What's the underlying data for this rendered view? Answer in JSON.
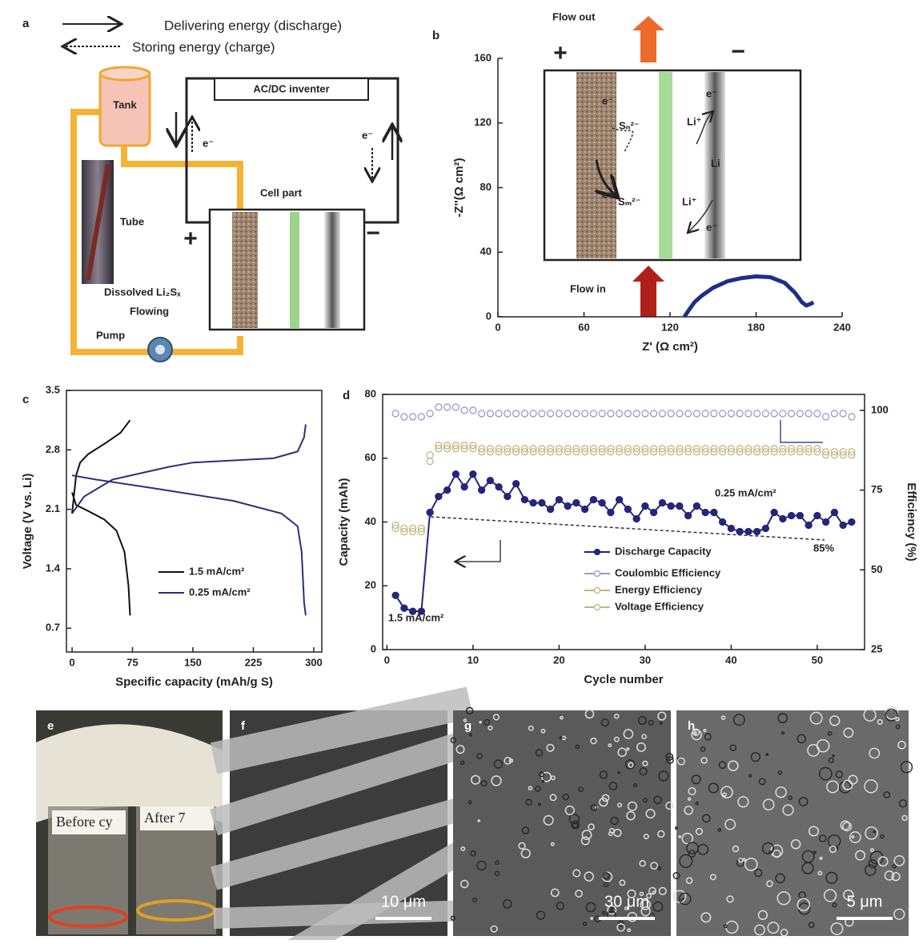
{
  "panel_a": {
    "label": "a",
    "legend": [
      "Delivering energy (discharge)",
      "Storing energy (charge)"
    ],
    "inverter": "AC/DC inventer",
    "tank": "Tank",
    "tube": "Tube",
    "cell": "Cell part",
    "plus": "+",
    "minus": "−",
    "electrons": [
      "e⁻",
      "e⁻"
    ],
    "dissolved": "Dissolved Li₂Sₓ",
    "flowing": "Flowing",
    "pump": "Pump"
  },
  "chart_data": [
    {
      "label": "b",
      "type": "line",
      "xlabel": "Z' (Ω cm²)",
      "ylabel": "-Z''(Ω cm²)",
      "xlim": [
        0,
        240
      ],
      "ylim": [
        0,
        160
      ],
      "xticks": [
        0,
        60,
        120,
        180,
        240
      ],
      "yticks": [
        0,
        40,
        80,
        120,
        160
      ],
      "x": [
        130,
        133,
        137,
        142,
        150,
        160,
        170,
        180,
        190,
        200,
        207,
        212,
        215,
        218,
        220
      ],
      "series": [
        {
          "color": "#1f2d8a",
          "values": [
            0,
            4,
            9,
            13,
            18,
            22,
            24,
            25,
            24.5,
            21,
            15,
            9,
            7,
            8,
            9
          ]
        }
      ],
      "inset": {
        "flow_out": "Flow out",
        "flow_in": "Flow in",
        "plus": "+",
        "minus": "−",
        "species": [
          "e⁻",
          "Sₙ²⁻",
          "e⁻",
          "Sₘ²⁻",
          "Li⁺",
          "e⁻",
          "Li",
          "Li⁺",
          "e⁻"
        ]
      }
    },
    {
      "label": "c",
      "type": "line",
      "xlabel": "Specific capacity (mAh/g S)",
      "ylabel": "Voltage (V vs. Li)",
      "xlim": [
        -7,
        310
      ],
      "ylim": [
        0.42,
        3.5
      ],
      "xticks": [
        0,
        75,
        150,
        225,
        300
      ],
      "yticks": [
        0.7,
        1.4,
        2.1,
        2.8,
        3.5
      ],
      "legend": "lower-right",
      "series": [
        {
          "name": "1.5 mA/cm²",
          "color": "#111111",
          "x": [
            0,
            5,
            20,
            40,
            55,
            65,
            70,
            72,
            null,
            0,
            5,
            10,
            20,
            40,
            60,
            72
          ],
          "values": [
            2.3,
            2.15,
            2.08,
            1.98,
            1.85,
            1.6,
            1.2,
            0.85,
            null,
            2.05,
            2.5,
            2.65,
            2.75,
            2.87,
            3.0,
            3.15
          ]
        },
        {
          "name": "0.25 mA/cm²",
          "color": "#2b2f7a",
          "x": [
            0,
            30,
            100,
            200,
            260,
            280,
            285,
            288,
            290,
            null,
            0,
            15,
            50,
            120,
            150,
            250,
            280,
            288,
            290
          ],
          "values": [
            2.5,
            2.45,
            2.35,
            2.2,
            2.05,
            1.9,
            1.6,
            1.0,
            0.85,
            null,
            2.05,
            2.25,
            2.45,
            2.6,
            2.65,
            2.7,
            2.78,
            2.95,
            3.1
          ]
        }
      ]
    },
    {
      "label": "d",
      "type": "line",
      "xlabel": "Cycle number",
      "ylabel": "Capacity (mAh)",
      "y2label": "Efficiency (%)",
      "xlim": [
        -0.5,
        55.5
      ],
      "ylim": [
        0,
        80
      ],
      "y2lim": [
        25,
        105
      ],
      "xticks": [
        0,
        10,
        20,
        30,
        40,
        50
      ],
      "yticks": [
        0,
        20,
        40,
        60,
        80
      ],
      "y2ticks": [
        25,
        50,
        75,
        100
      ],
      "legend": "center-right",
      "annotations": [
        "1.5 mA/cm²",
        "0.25 mA/cm²",
        "85%"
      ],
      "x": [
        1,
        2,
        3,
        4,
        5,
        6,
        7,
        8,
        9,
        10,
        11,
        12,
        13,
        14,
        15,
        16,
        17,
        18,
        19,
        20,
        21,
        22,
        23,
        24,
        25,
        26,
        27,
        28,
        29,
        30,
        31,
        32,
        33,
        34,
        35,
        36,
        37,
        38,
        39,
        40,
        41,
        42,
        43,
        44,
        45,
        46,
        47,
        48,
        49,
        50,
        51,
        52,
        53,
        54
      ],
      "series": [
        {
          "name": "Discharge Capacity",
          "color": "#23267a",
          "marker": "filled",
          "values": [
            17,
            13,
            12,
            12,
            43,
            48,
            50,
            55,
            51,
            55,
            50,
            53,
            51,
            48,
            52,
            47,
            46,
            46,
            44,
            47,
            45,
            46,
            44,
            47,
            46,
            43,
            47,
            44,
            41,
            45,
            43,
            46,
            45,
            45,
            42,
            45,
            43,
            43,
            40,
            38,
            37,
            37,
            37,
            38,
            43,
            41,
            42,
            42,
            39,
            42,
            40,
            43,
            39,
            40
          ]
        },
        {
          "name": "Coulombic Efficiency",
          "color": "#9a9ad0",
          "marker": "open",
          "axis": "y2",
          "values": [
            99,
            98,
            98,
            98,
            99,
            101,
            101,
            101,
            100,
            100,
            99,
            99,
            99,
            99,
            99,
            99,
            99,
            99,
            99,
            99,
            99,
            99,
            99,
            99,
            99,
            99,
            99,
            99,
            99,
            99,
            99,
            99,
            99,
            99,
            99,
            99,
            99,
            99,
            99,
            99,
            99,
            99,
            99,
            99,
            99,
            99,
            99,
            99,
            99,
            99,
            98,
            99,
            99,
            98
          ]
        },
        {
          "name": "Energy Efficiency",
          "color": "#c8b47a",
          "marker": "open",
          "axis": "y2",
          "values": [
            64,
            63,
            63,
            63,
            86,
            89,
            89,
            89,
            89,
            89,
            88,
            88,
            88,
            88,
            88,
            88,
            88,
            88,
            88,
            88,
            88,
            88,
            88,
            88,
            88,
            88,
            88,
            88,
            88,
            88,
            88,
            88,
            88,
            88,
            88,
            88,
            88,
            88,
            88,
            88,
            88,
            88,
            88,
            88,
            88,
            88,
            88,
            88,
            88,
            88,
            87,
            87,
            87,
            87
          ]
        },
        {
          "name": "Voltage Efficiency",
          "color": "#b9b98a",
          "marker": "open",
          "axis": "y2",
          "values": [
            63,
            62,
            62,
            62,
            84,
            88,
            88,
            88,
            88,
            88,
            87,
            87,
            87,
            87,
            87,
            87,
            87,
            87,
            87,
            87,
            87,
            87,
            87,
            87,
            87,
            87,
            87,
            87,
            87,
            87,
            87,
            87,
            87,
            87,
            87,
            87,
            87,
            87,
            87,
            87,
            87,
            87,
            87,
            87,
            87,
            87,
            87,
            87,
            87,
            87,
            86,
            86,
            86,
            86
          ]
        }
      ]
    }
  ],
  "photos": {
    "e": {
      "label": "e",
      "vial_labels": [
        "Before cy",
        "After 7"
      ]
    },
    "f": {
      "label": "f",
      "scale_bar": "10 μm"
    },
    "g": {
      "label": "g",
      "scale_bar": "30 μm"
    },
    "h": {
      "label": "h",
      "scale_bar": "5 μm"
    }
  }
}
